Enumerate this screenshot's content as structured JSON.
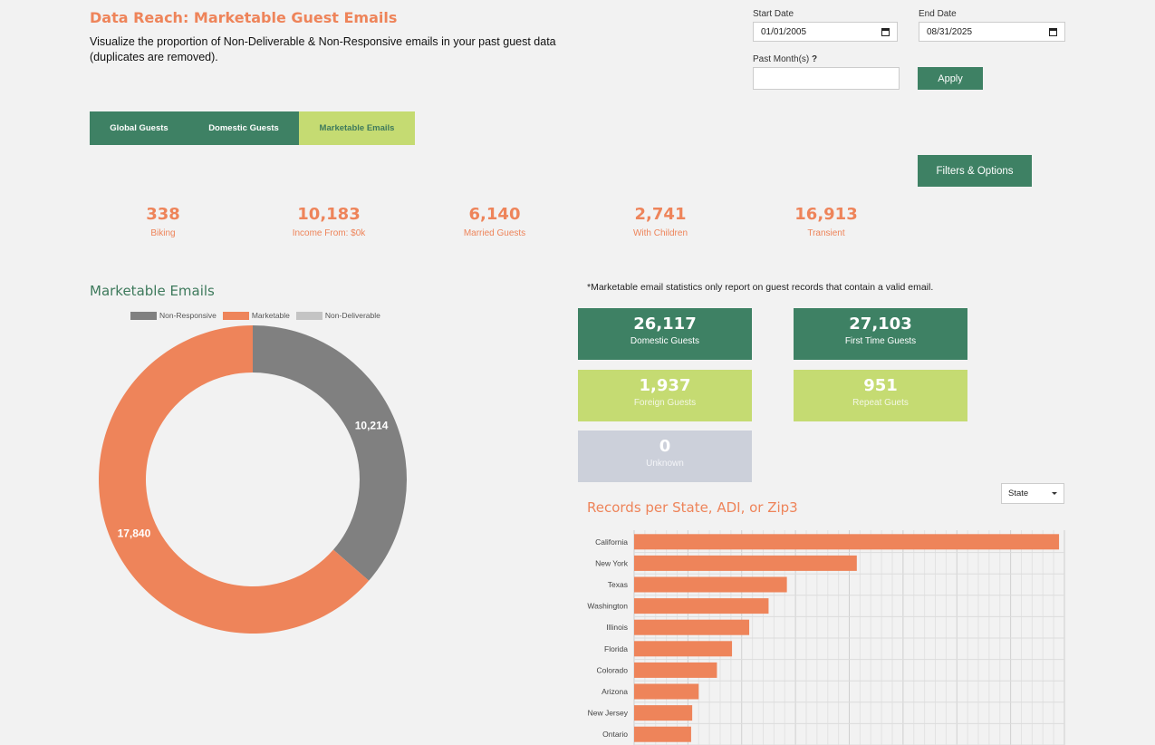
{
  "header": {
    "title": "Data Reach: Marketable Guest Emails",
    "description": "Visualize the proportion of Non-Deliverable & Non-Responsive emails in your past guest data (duplicates are removed)."
  },
  "filters": {
    "start_date_label": "Start Date",
    "start_date_value": "01/01/2005",
    "end_date_label": "End Date",
    "end_date_value": "08/31/2025",
    "past_months_label": "Past Month(s)",
    "past_months_help": "?",
    "past_months_value": "",
    "apply_label": "Apply",
    "filters_options_label": "Filters & Options"
  },
  "tabs": [
    {
      "label": "Global Guests",
      "active": false
    },
    {
      "label": "Domestic Guests",
      "active": false
    },
    {
      "label": "Marketable Emails",
      "active": true
    }
  ],
  "kpis": [
    {
      "value": "338",
      "label": "Biking"
    },
    {
      "value": "10,183",
      "label": "Income From: $0k"
    },
    {
      "value": "6,140",
      "label": "Married Guests"
    },
    {
      "value": "2,741",
      "label": "With Children"
    },
    {
      "value": "16,913",
      "label": "Transient"
    }
  ],
  "donut": {
    "title": "Marketable Emails",
    "legend": [
      {
        "label": "Non-Responsive",
        "color": "#808080"
      },
      {
        "label": "Marketable",
        "color": "#ee845a"
      },
      {
        "label": "Non-Deliverable",
        "color": "#c4c4c4"
      }
    ],
    "chart_data": {
      "type": "pie",
      "labels": [
        "Non-Responsive",
        "Marketable",
        "Non-Deliverable"
      ],
      "values": [
        10214,
        17840,
        0
      ],
      "value_labels": [
        "10,214",
        "17,840",
        ""
      ]
    }
  },
  "note": "*Marketable email statistics only report on guest records that contain a valid email.",
  "cards": [
    {
      "value": "26,117",
      "label": "Domestic Guests",
      "style": "green"
    },
    {
      "value": "27,103",
      "label": "First Time Guests",
      "style": "green"
    },
    {
      "value": "1,937",
      "label": "Foreign Guests",
      "style": "yellow"
    },
    {
      "value": "951",
      "label": "Repeat Guets",
      "style": "yellow"
    },
    {
      "value": "0",
      "label": "Unknown",
      "style": "slate"
    }
  ],
  "bars": {
    "title": "Records per State, ADI, or Zip3",
    "select_value": "State",
    "chart_data": {
      "type": "bar",
      "orientation": "horizontal",
      "categories": [
        "California",
        "New York",
        "Texas",
        "Washington",
        "Illinois",
        "Florida",
        "Colorado",
        "Arizona",
        "New Jersey",
        "Ontario"
      ],
      "values": [
        3950,
        2070,
        1420,
        1250,
        1070,
        910,
        770,
        600,
        540,
        530
      ],
      "xlim": [
        0,
        4000
      ],
      "grid": true,
      "color": "#ee845a"
    }
  }
}
